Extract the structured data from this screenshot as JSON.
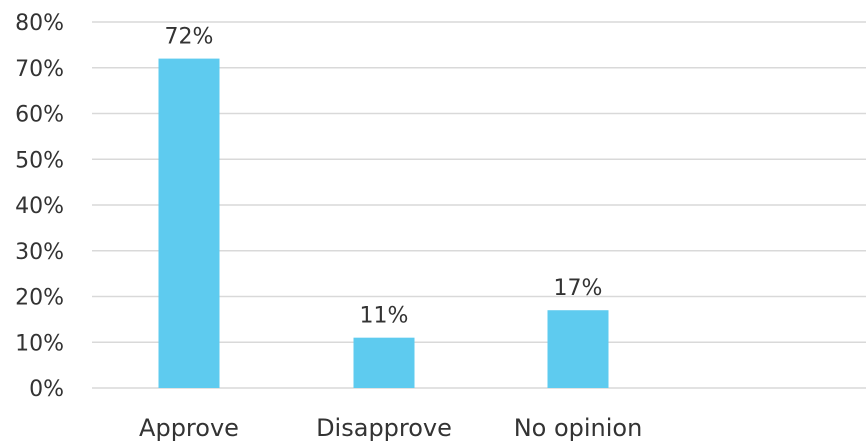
{
  "chart_data": {
    "type": "bar",
    "categories": [
      "Approve",
      "Disapprove",
      "No opinion"
    ],
    "values": [
      72,
      11,
      17
    ],
    "value_labels": [
      "72%",
      "11%",
      "17%"
    ],
    "y_tick_labels": [
      "0%",
      "10%",
      "20%",
      "30%",
      "40%",
      "50%",
      "60%",
      "70%",
      "80%"
    ],
    "y_ticks": [
      0,
      10,
      20,
      30,
      40,
      50,
      60,
      70,
      80
    ],
    "ylim": [
      0,
      80
    ],
    "grid": true,
    "legend": "none",
    "colors": {
      "bar": "#5ECBEF",
      "grid": "#d9d9d9",
      "text": "#333333"
    }
  }
}
